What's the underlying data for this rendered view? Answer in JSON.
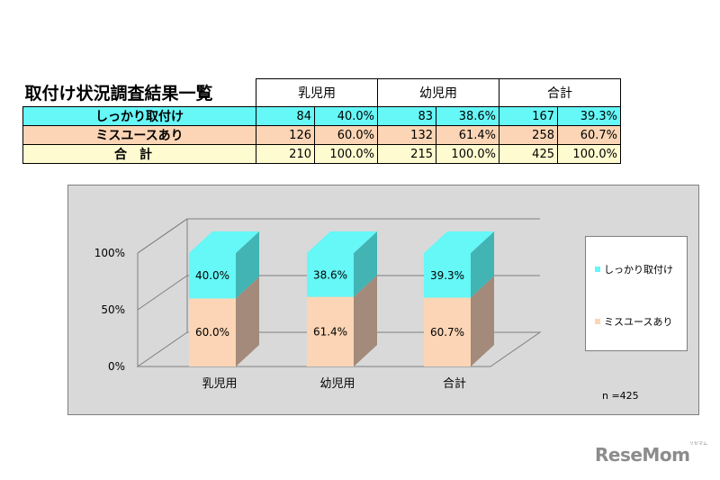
{
  "table": {
    "title": "取付け状況調査結果一覧",
    "groups": [
      "乳児用",
      "幼児用",
      "合計"
    ],
    "rows": [
      {
        "label": "しっかり取付け",
        "cells": [
          "84",
          "40.0%",
          "83",
          "38.6%",
          "167",
          "39.3%"
        ]
      },
      {
        "label": "ミスユースあり",
        "cells": [
          "126",
          "60.0%",
          "132",
          "61.4%",
          "258",
          "60.7%"
        ]
      },
      {
        "label": "合計",
        "cells": [
          "210",
          "100.0%",
          "215",
          "100.0%",
          "425",
          "100.0%"
        ]
      }
    ]
  },
  "chart_data": {
    "type": "bar",
    "stacked": true,
    "three_d": true,
    "categories": [
      "乳児用",
      "幼児用",
      "合計"
    ],
    "series": [
      {
        "name": "ミスユースあり",
        "values": [
          60.0,
          61.4,
          60.7
        ],
        "labels": [
          "60.0%",
          "61.4%",
          "60.7%"
        ]
      },
      {
        "name": "しっかり取付け",
        "values": [
          40.0,
          38.6,
          39.3
        ],
        "labels": [
          "40.0%",
          "38.6%",
          "39.3%"
        ]
      }
    ],
    "yticks": [
      "0%",
      "50%",
      "100%"
    ],
    "ylim": [
      0,
      100
    ],
    "grid": true,
    "legend_position": "right",
    "note": "n =425"
  },
  "colors": {
    "cyan": "#66f7f7",
    "cyan_dark": "#42b4b4",
    "peach": "#fbd5b5",
    "peach_dark": "#a38a7a",
    "table_yellow": "#fffbd0",
    "chart_bg": "#d9d9d9"
  },
  "logo": {
    "text": "ReseMom",
    "sub": "リセマム"
  }
}
